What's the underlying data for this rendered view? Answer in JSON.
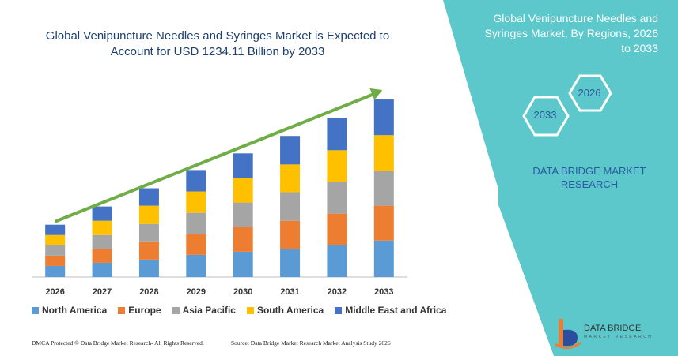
{
  "chart_data": {
    "type": "bar",
    "stacked": true,
    "title": "Global Venipuncture Needles and Syringes Market is Expected to Account for USD 1234.11 Billion by 2033",
    "title_lines": [
      "Global Venipuncture Needles and Syringes Market is Expected to",
      "Account for USD 1234.11 Billion by 2033"
    ],
    "categories": [
      "2026",
      "2027",
      "2028",
      "2029",
      "2030",
      "2031",
      "2032",
      "2033"
    ],
    "series": [
      {
        "name": "North America",
        "color": "#5b9bd5",
        "values": [
          14,
          18,
          22,
          28,
          32,
          35,
          40,
          46
        ]
      },
      {
        "name": "Europe",
        "color": "#ed7d31",
        "values": [
          13,
          17,
          23,
          26,
          31,
          36,
          40,
          44
        ]
      },
      {
        "name": "Asia Pacific",
        "color": "#a5a5a5",
        "values": [
          13,
          18,
          22,
          27,
          31,
          36,
          40,
          44
        ]
      },
      {
        "name": "South America",
        "color": "#ffc000",
        "values": [
          13,
          18,
          23,
          27,
          31,
          35,
          40,
          45
        ]
      },
      {
        "name": "Middle East and Africa",
        "color": "#4472c4",
        "values": [
          13,
          18,
          22,
          27,
          31,
          36,
          41,
          45
        ]
      }
    ],
    "ylim": [
      0,
      230
    ],
    "grid": false,
    "legend": "bottom",
    "trend_arrow": true
  },
  "side_panel": {
    "title": "Global Venipuncture Needles and Syringes Market, By Regions, 2026 to 2033",
    "title_lines": [
      "Global Venipuncture Needles and",
      "Syringes Market, By Regions, 2026",
      "to 2033"
    ],
    "hex_start_year": "2026",
    "hex_end_year": "2033",
    "brand_lines": [
      "DATA BRIDGE MARKET",
      "RESEARCH"
    ],
    "bg_color": "#5cc8cc"
  },
  "footer": {
    "left": "DMCA Protected © Data Bridge Market Research- All Rights Reserved.",
    "right": "Source: Data Bridge Market Research Market Analysis Study 2026"
  },
  "logo": {
    "name": "DATA BRIDGE",
    "tagline": "MARKET RESEARCH"
  },
  "colors": {
    "title": "#1f3f6f",
    "arrow": "#70ad47",
    "teal": "#5cc8cc"
  }
}
